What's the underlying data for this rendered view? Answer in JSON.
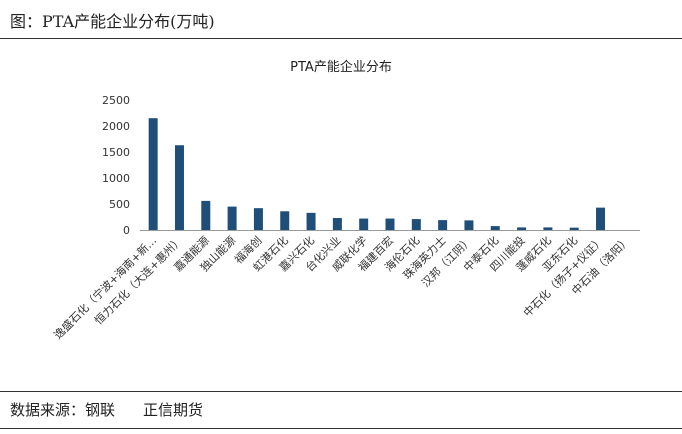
{
  "header": {
    "title": "图：PTA产能企业分布(万吨)"
  },
  "footer": {
    "source_label": "数据来源：钢联",
    "source_org": "正信期货"
  },
  "chart_data": {
    "type": "bar",
    "title": "PTA产能企业分布",
    "xlabel": "",
    "ylabel": "",
    "ylim": [
      0,
      2500
    ],
    "yticks": [
      0,
      500,
      1000,
      1500,
      2000,
      2500
    ],
    "grid": false,
    "legend": "none",
    "bar_color": "#1f4e79",
    "categories": [
      "逸盛石化（宁波+海南+新…",
      "恒力石化（大连+惠州）",
      "嘉通能源",
      "独山能源",
      "福海创",
      "虹港石化",
      "嘉兴石化",
      "台化兴业",
      "威联化学",
      "福建百宏",
      "海伦石化",
      "珠海英力士",
      "汉邦（江阴）",
      "中泰石化",
      "四川能投",
      "蓬威石化",
      "亚东石化",
      "中石化（扬子+仪征）",
      "中石油（洛阳）"
    ],
    "values": [
      2150,
      1630,
      560,
      450,
      420,
      360,
      330,
      230,
      220,
      220,
      210,
      190,
      185,
      75,
      50,
      50,
      45,
      430,
      0
    ]
  }
}
